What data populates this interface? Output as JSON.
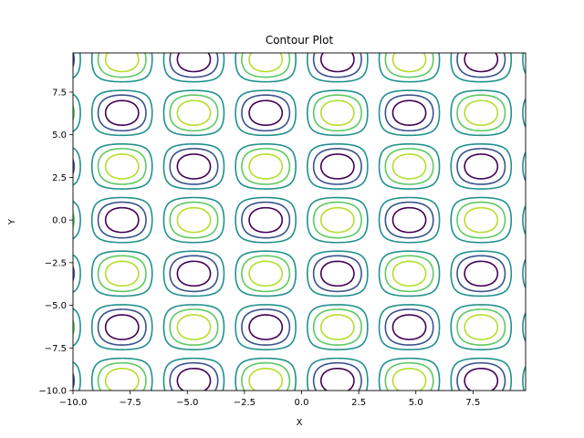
{
  "chart_data": {
    "type": "contour",
    "title": "Contour Plot",
    "xlabel": "X",
    "ylabel": "Y",
    "function": "sin(x) * cos(y)",
    "xlim": [
      -10,
      9.8
    ],
    "ylim": [
      -10,
      9.8
    ],
    "x_ticks": [
      {
        "value": -10,
        "label": "−10.0"
      },
      {
        "value": -7.5,
        "label": "−7.5"
      },
      {
        "value": -5,
        "label": "−5.0"
      },
      {
        "value": -2.5,
        "label": "−2.5"
      },
      {
        "value": 0,
        "label": "0.0"
      },
      {
        "value": 2.5,
        "label": "2.5"
      },
      {
        "value": 5,
        "label": "5.0"
      },
      {
        "value": 7.5,
        "label": "7.5"
      }
    ],
    "y_ticks": [
      {
        "value": -10,
        "label": "−10.0"
      },
      {
        "value": -7.5,
        "label": "−7.5"
      },
      {
        "value": -5,
        "label": "−5.0"
      },
      {
        "value": -2.5,
        "label": "−2.5"
      },
      {
        "value": 0,
        "label": "0.0"
      },
      {
        "value": 2.5,
        "label": "2.5"
      },
      {
        "value": 5,
        "label": "5.0"
      },
      {
        "value": 7.5,
        "label": "7.5"
      }
    ],
    "levels": [
      -0.75,
      -0.5,
      -0.25,
      0.25,
      0.5,
      0.75
    ],
    "level_colors": [
      "#440154",
      "#3b528b",
      "#21918c",
      "#21918c",
      "#5ec962",
      "#b5de2b"
    ],
    "grid": false,
    "legend": "none"
  }
}
